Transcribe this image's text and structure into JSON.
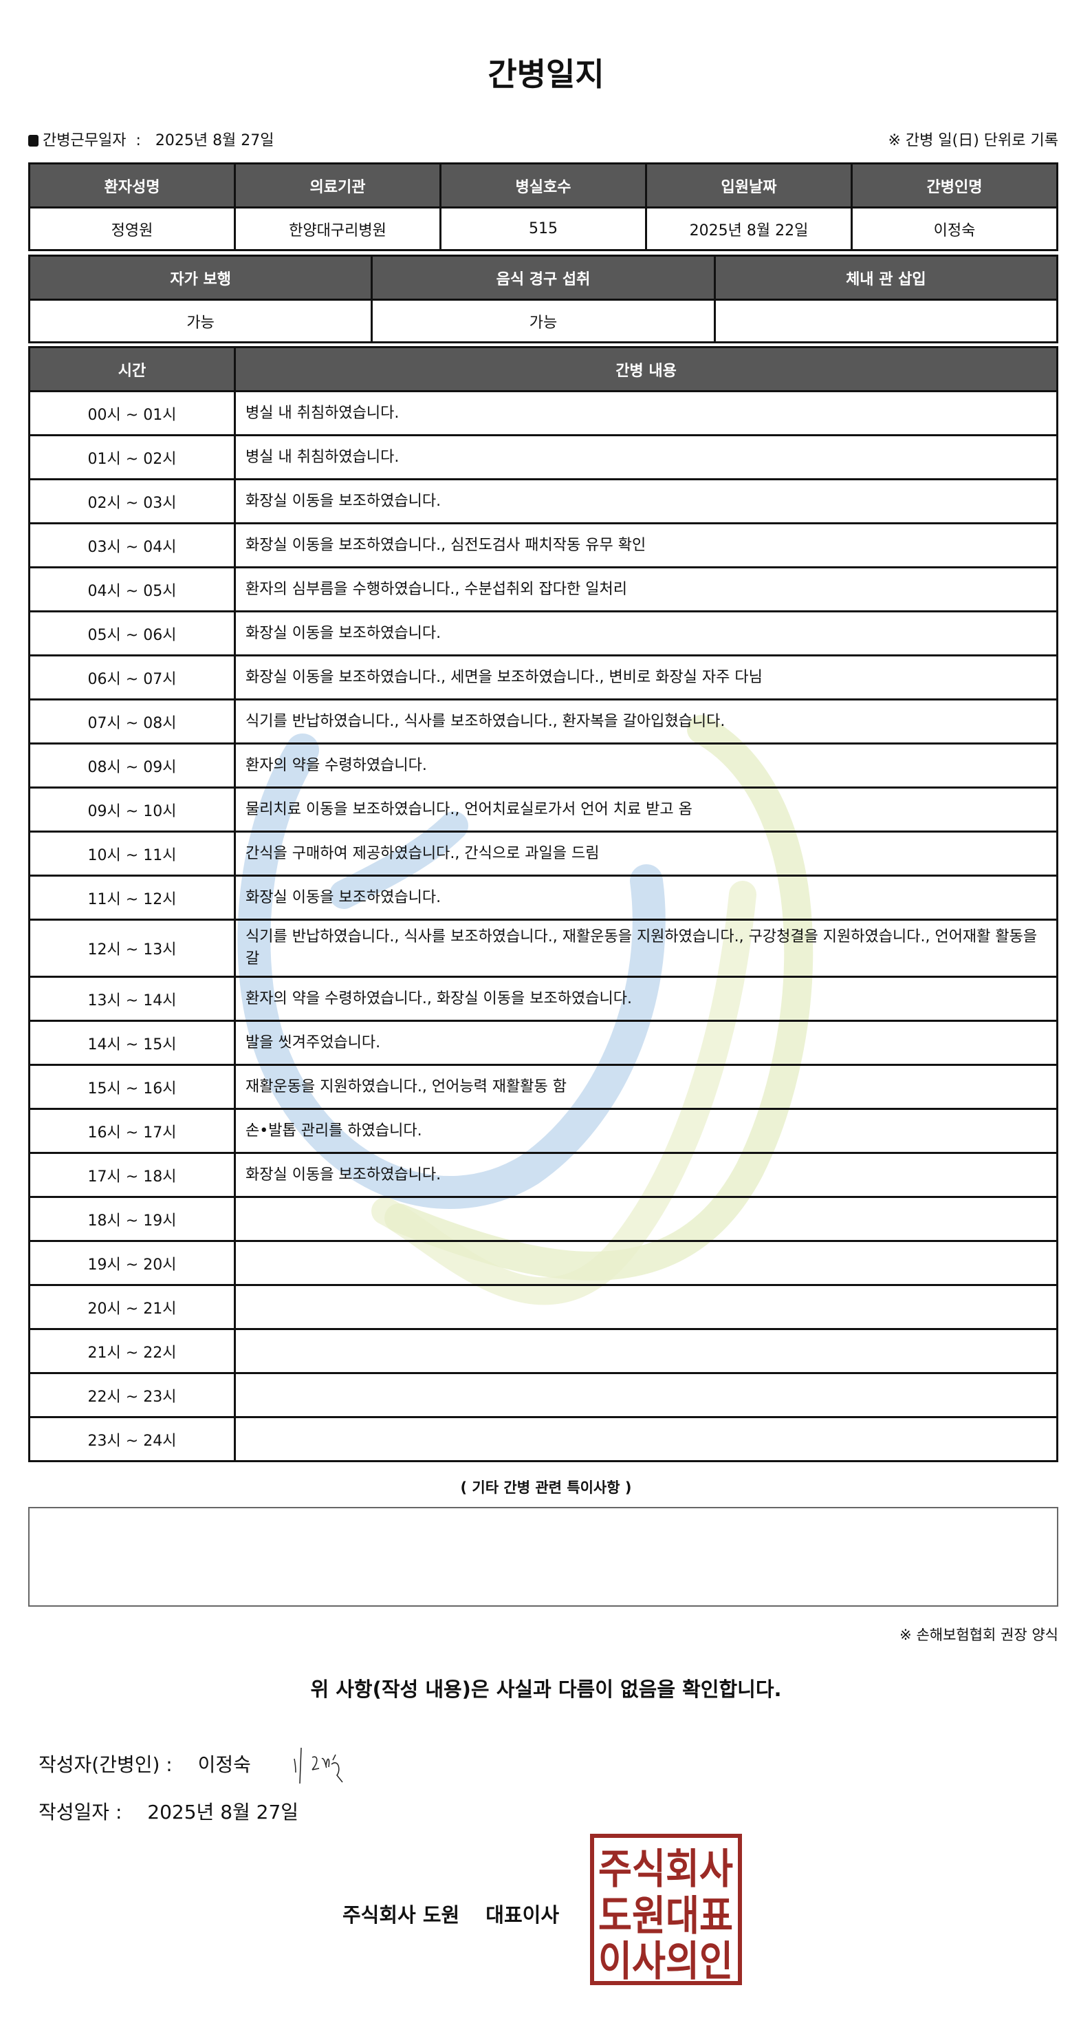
{
  "title": "간병일지",
  "work_date_label": "간병근무일자",
  "work_date": "2025년 8월 27일",
  "record_note": "※ 간병 일(日) 단위로 기록",
  "patient_table": {
    "headers": [
      "환자성명",
      "의료기관",
      "병실호수",
      "입원날짜",
      "간병인명"
    ],
    "values": [
      "정영원",
      "한양대구리병원",
      "515",
      "2025년 8월 22일",
      "이정숙"
    ]
  },
  "status_table": {
    "headers": [
      "자가 보행",
      "음식 경구 섭취",
      "체내 관 삽입"
    ],
    "values": [
      "가능",
      "가능",
      ""
    ]
  },
  "log_table": {
    "headers": [
      "시간",
      "간병 내용"
    ],
    "rows": [
      {
        "time": "00시 ~ 01시",
        "content": "병실 내 취침하였습니다."
      },
      {
        "time": "01시 ~ 02시",
        "content": "병실 내 취침하였습니다."
      },
      {
        "time": "02시 ~ 03시",
        "content": "화장실 이동을 보조하였습니다."
      },
      {
        "time": "03시 ~ 04시",
        "content": "화장실 이동을 보조하였습니다., 심전도검사 패치작동 유무 확인"
      },
      {
        "time": "04시 ~ 05시",
        "content": "환자의 심부름을 수행하였습니다., 수분섭취외 잡다한 일처리"
      },
      {
        "time": "05시 ~ 06시",
        "content": "화장실 이동을 보조하였습니다."
      },
      {
        "time": "06시 ~ 07시",
        "content": "화장실 이동을 보조하였습니다., 세면을 보조하였습니다., 변비로 화장실 자주 다님"
      },
      {
        "time": "07시 ~ 08시",
        "content": "식기를 반납하였습니다., 식사를 보조하였습니다., 환자복을 갈아입혔습니다."
      },
      {
        "time": "08시 ~ 09시",
        "content": "환자의 약을 수령하였습니다."
      },
      {
        "time": "09시 ~ 10시",
        "content": "물리치료 이동을 보조하였습니다., 언어치료실로가서 언어 치료 받고 옴"
      },
      {
        "time": "10시 ~ 11시",
        "content": "간식을 구매하여 제공하였습니다., 간식으로 과일을 드림"
      },
      {
        "time": "11시 ~ 12시",
        "content": "화장실 이동을 보조하였습니다."
      },
      {
        "time": "12시 ~ 13시",
        "content": "식기를 반납하였습니다., 식사를 보조하였습니다., 재활운동을 지원하였습니다., 구강청결을 지원하였습니다., 언어재활 활동을 갈"
      },
      {
        "time": "13시 ~ 14시",
        "content": "환자의 약을 수령하였습니다., 화장실 이동을 보조하였습니다."
      },
      {
        "time": "14시 ~ 15시",
        "content": "발을 씻겨주었습니다."
      },
      {
        "time": "15시 ~ 16시",
        "content": "재활운동을 지원하였습니다., 언어능력 재활활동 함"
      },
      {
        "time": "16시 ~ 17시",
        "content": "손•발톱 관리를 하였습니다."
      },
      {
        "time": "17시 ~ 18시",
        "content": "화장실 이동을 보조하였습니다."
      },
      {
        "time": "18시 ~ 19시",
        "content": ""
      },
      {
        "time": "19시 ~ 20시",
        "content": ""
      },
      {
        "time": "20시 ~ 21시",
        "content": ""
      },
      {
        "time": "21시 ~ 22시",
        "content": ""
      },
      {
        "time": "22시 ~ 23시",
        "content": ""
      },
      {
        "time": "23시 ~ 24시",
        "content": ""
      }
    ]
  },
  "special_notes_label": "( 기타 간병 관련 특이사항 )",
  "special_notes": "",
  "form_source": "※ 손해보험협회 권장 양식",
  "confirmation": "위 사항(작성 내용)은 사실과 다름이 없음을 확인합니다.",
  "writer_label": "작성자(간병인) :",
  "writer_name": "이정숙",
  "written_date_label": "작성일자 :",
  "written_date": "2025년 8월 27일",
  "company": "주식회사 도원",
  "ceo_title": "대표이사",
  "stamp_text": "주식회사도원대표이사의인",
  "colors": {
    "header_bg": "#585858",
    "stamp": "#9b2a25",
    "watermark_blue": "#c5dbee",
    "watermark_green": "#eaf1cf"
  }
}
